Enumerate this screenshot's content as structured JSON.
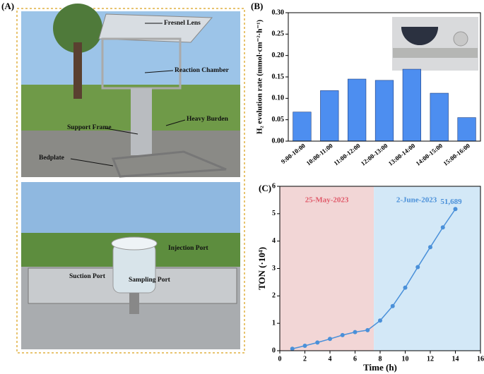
{
  "panels": [
    "(A)",
    "(B)",
    "(C)"
  ],
  "photos": {
    "top": [
      "Fresnel Lens",
      "Reaction Chamber",
      "Heavy Burden",
      "Support Frame",
      "Bedplate"
    ],
    "bottom": [
      "Injection Port",
      "Suction Port",
      "Sampling Port"
    ]
  },
  "chart_data": [
    {
      "type": "bar",
      "y_label": "H₂ evolution rate (mmol·cm⁻²·h⁻¹)",
      "categories": [
        "9:00-10:00",
        "10:00-11:00",
        "11:00-12:00",
        "12:00-13:00",
        "13:00-14:00",
        "14:00-15:00",
        "15:00-16:00"
      ],
      "values": [
        0.068,
        0.118,
        0.145,
        0.142,
        0.168,
        0.112,
        0.055
      ],
      "color": "#4d8ef0",
      "ylim": [
        0,
        0.3
      ],
      "yticks": [
        {
          "value": 0,
          "label": "0.00"
        },
        {
          "value": 0.05,
          "label": "0.05"
        },
        {
          "value": 0.1,
          "label": "0.10"
        },
        {
          "value": 0.15,
          "label": "0.15"
        },
        {
          "value": 0.2,
          "label": "0.20"
        },
        {
          "value": 0.25,
          "label": "0.25"
        },
        {
          "value": 0.3,
          "label": "0.30"
        }
      ]
    },
    {
      "type": "line",
      "x_label": "Time (h)",
      "y_label": "TON (·10⁴)",
      "x": [
        1,
        2,
        3,
        4,
        5,
        6,
        7,
        8,
        9,
        10,
        11,
        12,
        13,
        14
      ],
      "values": [
        0.07,
        0.18,
        0.3,
        0.43,
        0.57,
        0.68,
        0.75,
        1.1,
        1.63,
        2.3,
        3.05,
        3.78,
        4.5,
        5.1689
      ],
      "value_labels": [
        null,
        null,
        null,
        null,
        null,
        null,
        null,
        null,
        null,
        null,
        null,
        null,
        null,
        "51,689"
      ],
      "color": "#4a90d9",
      "regions": [
        {
          "label": "25-May-2023",
          "from": 0,
          "to": 7.5,
          "color": "#f2d6d6",
          "text_color": "#e05a6a"
        },
        {
          "label": "2-June-2023",
          "from": 7.5,
          "to": 16,
          "color": "#d3e8f7",
          "text_color": "#4a90d9"
        }
      ],
      "xlim": [
        0,
        16
      ],
      "xticks": [
        0,
        2,
        4,
        6,
        8,
        10,
        12,
        14,
        16
      ],
      "ylim": [
        0,
        6
      ],
      "yticks": [
        0,
        1,
        2,
        3,
        4,
        5,
        6
      ]
    }
  ]
}
